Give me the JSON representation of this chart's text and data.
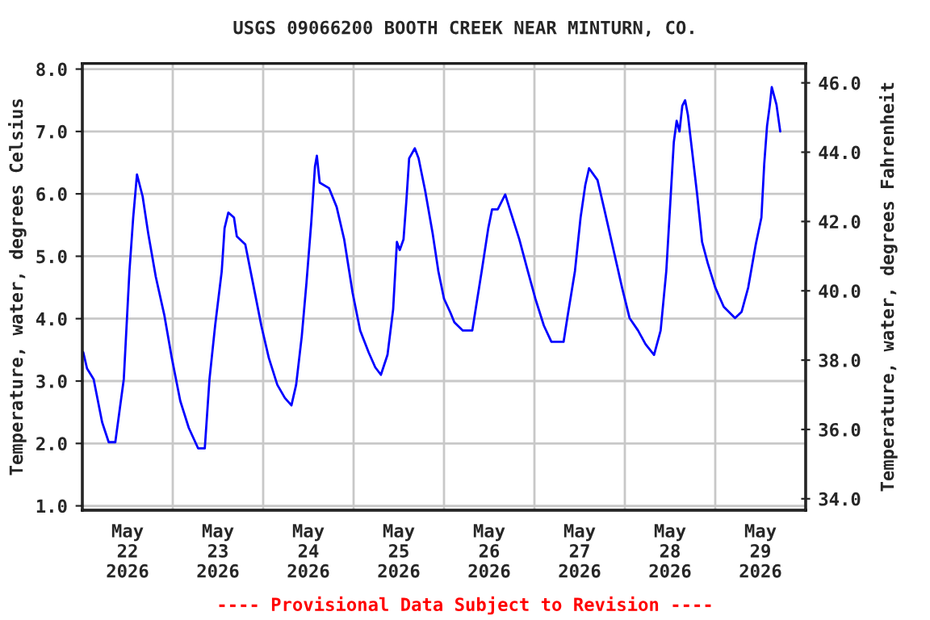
{
  "chart_data": {
    "type": "line",
    "title": "USGS 09066200 BOOTH CREEK NEAR MINTURN, CO.",
    "ylabel": "Temperature, water, degrees Celsius",
    "y2label": "Temperature, water, degrees Fahrenheit",
    "annotations": [
      "---- Provisional Data Subject to Revision ----"
    ],
    "series": [
      {
        "color": "#0000ff",
        "x": [
          "2026-05-22T00:15",
          "2026-05-22T01:15",
          "2026-05-22T03:00",
          "2026-05-22T05:15",
          "2026-05-22T07:00",
          "2026-05-22T08:45",
          "2026-05-22T11:00",
          "2026-05-22T12:30",
          "2026-05-22T13:30",
          "2026-05-22T14:30",
          "2026-05-22T16:00",
          "2026-05-22T17:30",
          "2026-05-22T19:30",
          "2026-05-22T21:45",
          "2026-05-22T23:45",
          "2026-05-23T02:00",
          "2026-05-23T04:15",
          "2026-05-23T06:45",
          "2026-05-23T08:30",
          "2026-05-23T09:45",
          "2026-05-23T11:15",
          "2026-05-23T13:00",
          "2026-05-23T13:45",
          "2026-05-23T14:45",
          "2026-05-23T16:15",
          "2026-05-23T17:00",
          "2026-05-23T19:15",
          "2026-05-23T21:15",
          "2026-05-23T23:30",
          "2026-05-24T01:30",
          "2026-05-24T03:45",
          "2026-05-24T05:45",
          "2026-05-24T07:30",
          "2026-05-24T08:45",
          "2026-05-24T10:15",
          "2026-05-24T11:30",
          "2026-05-24T12:45",
          "2026-05-24T13:45",
          "2026-05-24T14:15",
          "2026-05-24T15:00",
          "2026-05-24T17:30",
          "2026-05-24T19:30",
          "2026-05-24T21:30",
          "2026-05-24T23:45",
          "2026-05-25T01:45",
          "2026-05-25T04:00",
          "2026-05-25T05:45",
          "2026-05-25T07:15",
          "2026-05-25T09:00",
          "2026-05-25T10:30",
          "2026-05-25T11:30",
          "2026-05-25T12:15",
          "2026-05-25T13:15",
          "2026-05-25T14:00",
          "2026-05-25T14:45",
          "2026-05-25T16:15",
          "2026-05-25T17:15",
          "2026-05-25T19:00",
          "2026-05-25T21:00",
          "2026-05-25T22:30",
          "2026-05-26T00:00",
          "2026-05-26T01:45",
          "2026-05-26T02:45",
          "2026-05-26T05:00",
          "2026-05-26T07:30",
          "2026-05-26T08:30",
          "2026-05-26T10:00",
          "2026-05-26T11:45",
          "2026-05-26T12:45",
          "2026-05-26T14:15",
          "2026-05-26T16:15",
          "2026-05-26T17:45",
          "2026-05-26T20:00",
          "2026-05-26T22:15",
          "2026-05-27T00:15",
          "2026-05-27T02:30",
          "2026-05-27T04:30",
          "2026-05-27T07:45",
          "2026-05-27T08:45",
          "2026-05-27T10:45",
          "2026-05-27T12:15",
          "2026-05-27T13:30",
          "2026-05-27T14:30",
          "2026-05-27T16:45",
          "2026-05-27T18:45",
          "2026-05-27T21:00",
          "2026-05-27T23:15",
          "2026-05-28T01:15",
          "2026-05-28T03:30",
          "2026-05-28T05:30",
          "2026-05-28T07:45",
          "2026-05-28T09:30",
          "2026-05-28T11:00",
          "2026-05-28T12:00",
          "2026-05-28T13:00",
          "2026-05-28T13:45",
          "2026-05-28T14:30",
          "2026-05-28T15:15",
          "2026-05-28T16:00",
          "2026-05-28T16:45",
          "2026-05-28T17:45",
          "2026-05-28T19:15",
          "2026-05-28T20:30",
          "2026-05-28T22:00",
          "2026-05-29T00:00",
          "2026-05-29T02:15",
          "2026-05-29T05:15",
          "2026-05-29T07:00",
          "2026-05-29T08:45",
          "2026-05-29T10:45",
          "2026-05-29T12:15",
          "2026-05-29T13:00",
          "2026-05-29T13:45",
          "2026-05-29T14:30",
          "2026-05-29T15:00",
          "2026-05-29T16:15",
          "2026-05-29T17:15"
        ],
        "values": [
          3.46,
          3.2,
          3.03,
          2.34,
          2.02,
          2.02,
          3.03,
          4.76,
          5.62,
          6.31,
          5.96,
          5.36,
          4.67,
          4.06,
          3.37,
          2.68,
          2.25,
          1.92,
          1.92,
          3.03,
          3.89,
          4.76,
          5.45,
          5.7,
          5.62,
          5.32,
          5.19,
          4.58,
          3.89,
          3.37,
          2.94,
          2.73,
          2.61,
          2.94,
          3.72,
          4.58,
          5.53,
          6.44,
          6.61,
          6.18,
          6.09,
          5.79,
          5.27,
          4.41,
          3.81,
          3.46,
          3.22,
          3.1,
          3.42,
          4.15,
          5.23,
          5.1,
          5.27,
          5.88,
          6.57,
          6.73,
          6.57,
          6.05,
          5.36,
          4.76,
          4.32,
          4.09,
          3.94,
          3.81,
          3.81,
          4.19,
          4.76,
          5.45,
          5.75,
          5.75,
          5.99,
          5.7,
          5.27,
          4.76,
          4.32,
          3.89,
          3.63,
          3.63,
          4.02,
          4.76,
          5.62,
          6.14,
          6.41,
          6.22,
          5.7,
          5.1,
          4.5,
          4.01,
          3.81,
          3.59,
          3.42,
          3.81,
          4.76,
          5.79,
          6.83,
          7.17,
          7.0,
          7.41,
          7.5,
          7.26,
          6.74,
          5.96,
          5.23,
          4.89,
          4.5,
          4.19,
          4.01,
          4.11,
          4.5,
          5.19,
          5.62,
          6.48,
          7.09,
          7.43,
          7.71,
          7.43,
          7.0
        ]
      }
    ],
    "xlim": [
      "2026-05-22T00:00",
      "2026-05-30T00:00"
    ],
    "xticks": [
      {
        "value": "2026-05-22T12:00",
        "label": "May\n22\n2026"
      },
      {
        "value": "2026-05-23T12:00",
        "label": "May\n23\n2026"
      },
      {
        "value": "2026-05-24T12:00",
        "label": "May\n24\n2026"
      },
      {
        "value": "2026-05-25T12:00",
        "label": "May\n25\n2026"
      },
      {
        "value": "2026-05-26T12:00",
        "label": "May\n26\n2026"
      },
      {
        "value": "2026-05-27T12:00",
        "label": "May\n27\n2026"
      },
      {
        "value": "2026-05-28T12:00",
        "label": "May\n28\n2026"
      },
      {
        "value": "2026-05-29T12:00",
        "label": "May\n29\n2026"
      }
    ],
    "ylim": [
      0.93,
      8.09
    ],
    "yticks": [
      {
        "value": 1,
        "label": "1.0"
      },
      {
        "value": 2,
        "label": "2.0"
      },
      {
        "value": 3,
        "label": "3.0"
      },
      {
        "value": 4,
        "label": "4.0"
      },
      {
        "value": 5,
        "label": "5.0"
      },
      {
        "value": 6,
        "label": "6.0"
      },
      {
        "value": 7,
        "label": "7.0"
      },
      {
        "value": 8,
        "label": "8.0"
      }
    ],
    "y2lim": [
      33.67,
      46.56
    ],
    "y2ticks": [
      {
        "value": 34,
        "label": "34.0"
      },
      {
        "value": 36,
        "label": "36.0"
      },
      {
        "value": 38,
        "label": "38.0"
      },
      {
        "value": 40,
        "label": "40.0"
      },
      {
        "value": 42,
        "label": "42.0"
      },
      {
        "value": 44,
        "label": "44.0"
      },
      {
        "value": 46,
        "label": "46.0"
      }
    ],
    "grid": true,
    "legend": false,
    "marker": "none",
    "line_style": "solid"
  }
}
